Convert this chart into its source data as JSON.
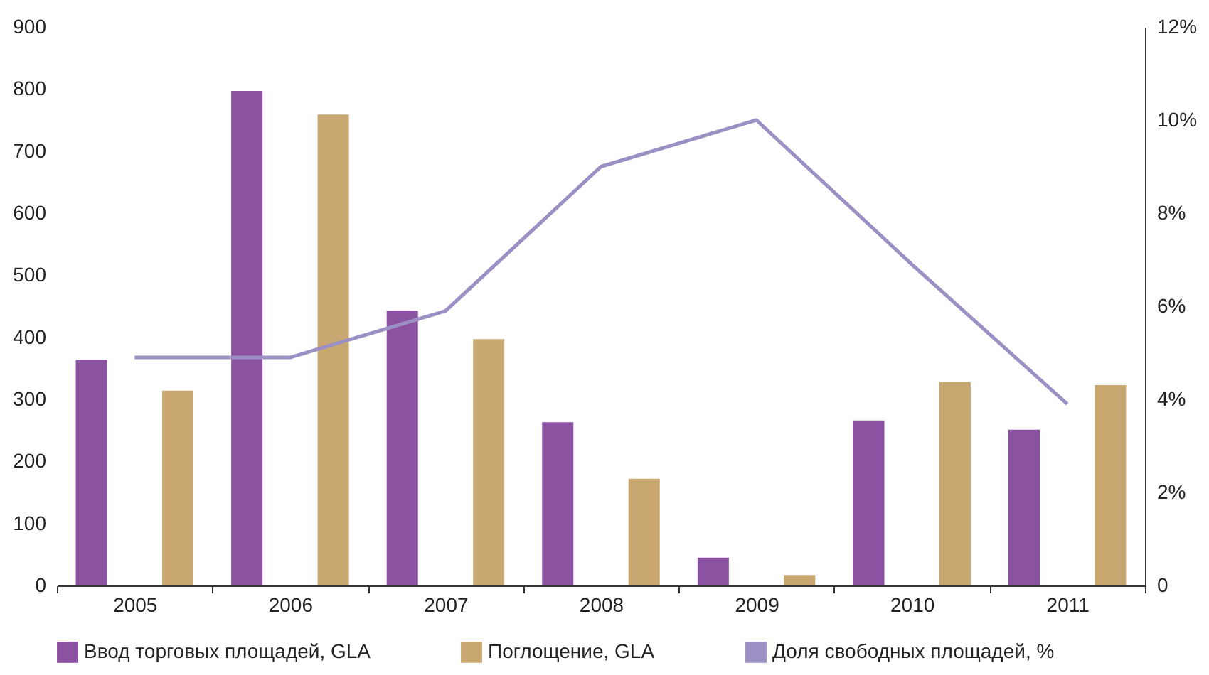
{
  "chart_data": {
    "type": "bar",
    "categories": [
      "2005",
      "2006",
      "2007",
      "2008",
      "2009",
      "2010",
      "2011"
    ],
    "series": [
      {
        "name": "Ввод торговых площадей, GLA",
        "color": "#8b52a1",
        "values": [
          364,
          797,
          443,
          263,
          45,
          266,
          251
        ]
      },
      {
        "name": "Поглощение, GLA",
        "color": "#c8a870",
        "values": [
          314,
          759,
          397,
          172,
          17,
          328,
          323
        ]
      },
      {
        "name": "Доля свободных площадей, %",
        "color": "#9b8fc4",
        "type": "line",
        "axis": "y2",
        "values": [
          4.9,
          4.9,
          5.9,
          9.0,
          10.0,
          6.9,
          3.9
        ]
      }
    ],
    "ylim": [
      0,
      900
    ],
    "yticks": [
      0,
      100,
      200,
      300,
      400,
      500,
      600,
      700,
      800,
      900
    ],
    "y2lim": [
      0,
      12
    ],
    "y2ticks": [
      0,
      {
        "value": 2,
        "label": "2%"
      },
      {
        "value": 4,
        "label": "4%"
      },
      {
        "value": 6,
        "label": "6%"
      },
      {
        "value": 8,
        "label": "8%"
      },
      {
        "value": 10,
        "label": "10%"
      },
      {
        "value": 12,
        "label": "12%"
      }
    ],
    "legend": "bottom",
    "grid": false,
    "marker": "none",
    "line_style": "solid"
  }
}
